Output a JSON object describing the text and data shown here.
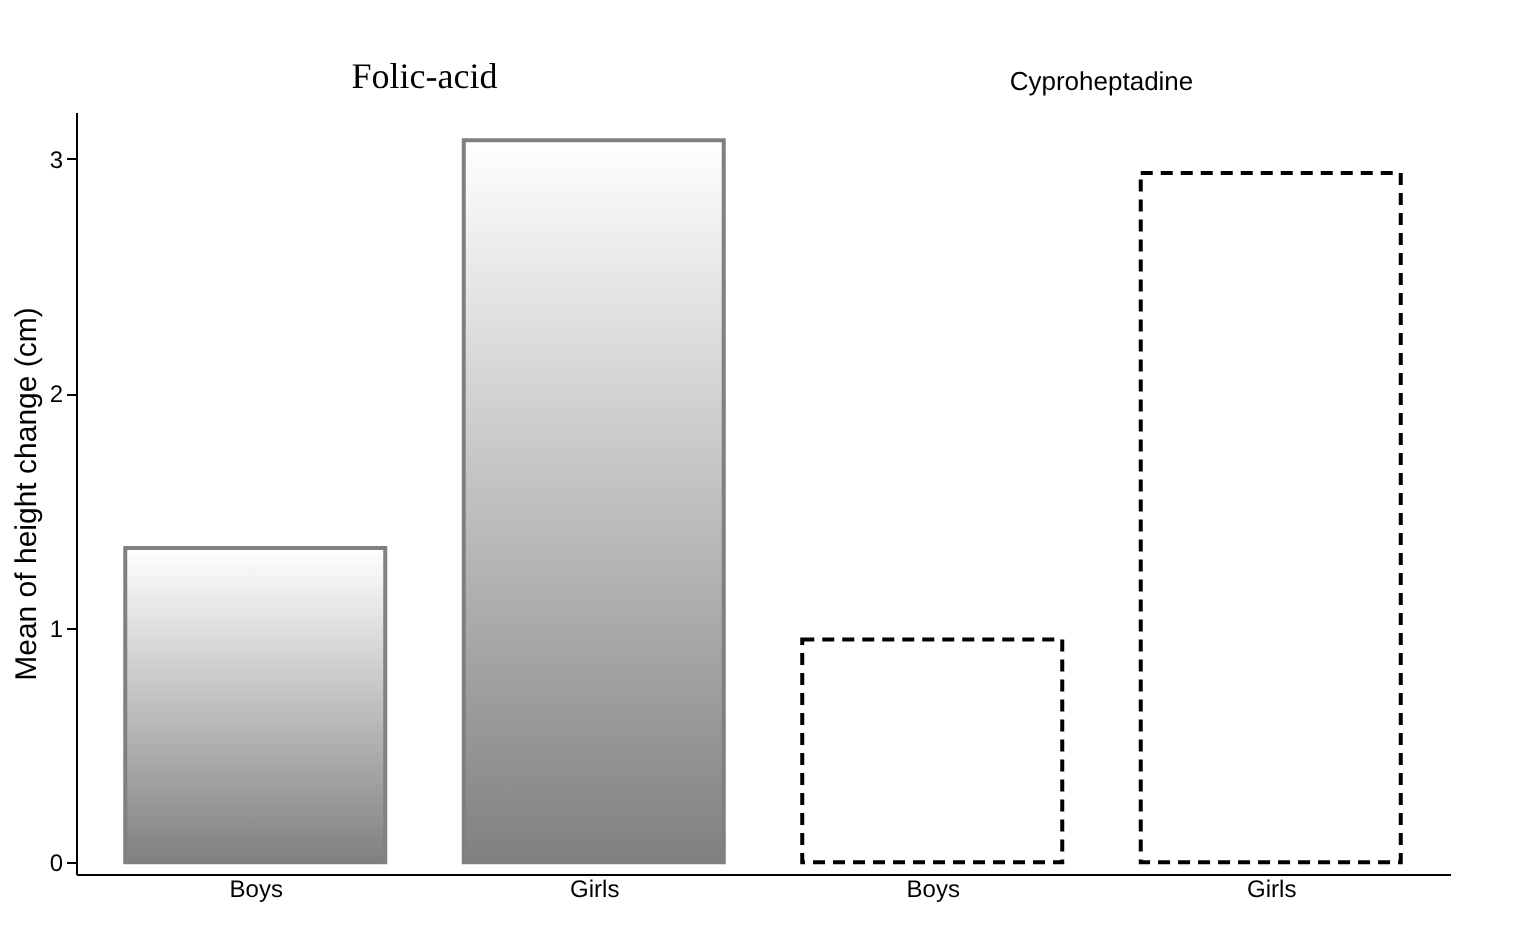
{
  "chart_data": {
    "type": "bar",
    "categories": [
      "Boys",
      "Girls",
      "Boys",
      "Girls"
    ],
    "series": [
      {
        "values": [
          1.34,
          3.08,
          null,
          null
        ],
        "color": "#808080",
        "line_style": "solid"
      },
      {
        "values": [
          null,
          null,
          0.95,
          2.94
        ],
        "color": "#ffffff",
        "line_style": "dashed"
      }
    ],
    "ylabel": "Mean of height change (cm)",
    "ylim": [
      -0.05,
      3.2
    ],
    "yticks": [
      0,
      1,
      2,
      3
    ],
    "grid": false,
    "annotations": [
      "Folic-acid",
      "Cyproheptadine"
    ]
  }
}
